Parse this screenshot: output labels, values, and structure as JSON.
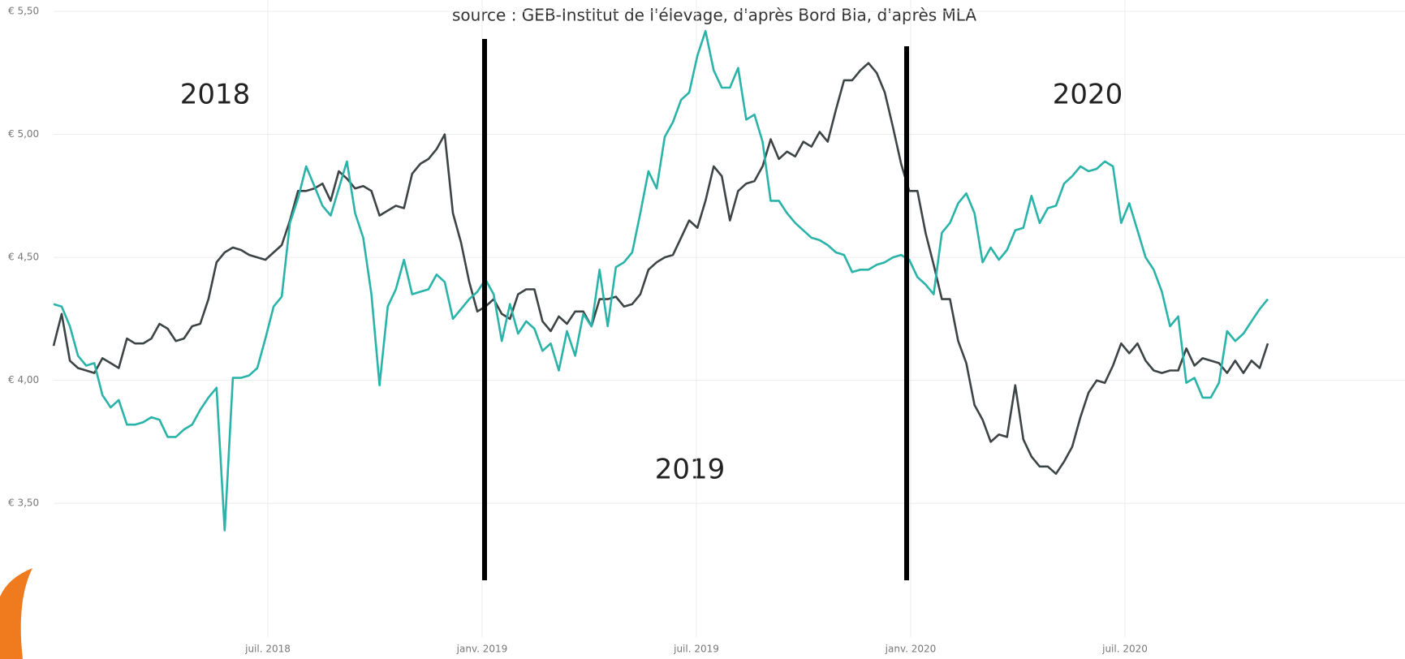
{
  "chart_data": {
    "type": "line",
    "subtitle": "source : GEB-Institut de l'élevage, d'après Bord Bia, d'après MLA",
    "annotations": [
      "2018",
      "2019",
      "2020"
    ],
    "xlim": [
      "2018-01",
      "2020-11"
    ],
    "xticks": [
      {
        "value": "2018-07",
        "label": "juil. 2018"
      },
      {
        "value": "2019-01",
        "label": "janv. 2019"
      },
      {
        "value": "2019-07",
        "label": "juil. 2019"
      },
      {
        "value": "2020-01",
        "label": "janv. 2020"
      },
      {
        "value": "2020-07",
        "label": "juil. 2020"
      }
    ],
    "ylim": [
      3.25,
      5.5
    ],
    "yticks": [
      {
        "value": 3.5,
        "label": "€ 3,50"
      },
      {
        "value": 4,
        "label": "€ 4,00"
      },
      {
        "value": 4.5,
        "label": "€ 4,50"
      },
      {
        "value": 5,
        "label": "€ 5,00"
      },
      {
        "value": 5.5,
        "label": "€ 5,50"
      }
    ],
    "grid": true,
    "series": [
      {
        "color": "#3d4446",
        "values": [
          4.14,
          4.27,
          4.08,
          4.05,
          4.04,
          4.03,
          4.09,
          4.07,
          4.05,
          4.17,
          4.15,
          4.15,
          4.17,
          4.23,
          4.21,
          4.16,
          4.17,
          4.22,
          4.23,
          4.33,
          4.48,
          4.52,
          4.54,
          4.53,
          4.51,
          4.5,
          4.49,
          4.52,
          4.55,
          4.65,
          4.77,
          4.77,
          4.78,
          4.8,
          4.73,
          4.85,
          4.82,
          4.78,
          4.79,
          4.77,
          4.67,
          4.69,
          4.71,
          4.7,
          4.84,
          4.88,
          4.9,
          4.94,
          5.0,
          4.68,
          4.56,
          4.4,
          4.28,
          4.3,
          4.33,
          4.27,
          4.25,
          4.35,
          4.37,
          4.37,
          4.24,
          4.2,
          4.26,
          4.23,
          4.28,
          4.28,
          4.22,
          4.33,
          4.33,
          4.34,
          4.3,
          4.31,
          4.35,
          4.45,
          4.48,
          4.5,
          4.51,
          4.58,
          4.65,
          4.62,
          4.73,
          4.87,
          4.83,
          4.65,
          4.77,
          4.8,
          4.81,
          4.87,
          4.98,
          4.9,
          4.93,
          4.91,
          4.97,
          4.95,
          5.01,
          4.97,
          5.1,
          5.22,
          5.22,
          5.26,
          5.29,
          5.25,
          5.17,
          5.03,
          4.88,
          4.77,
          4.77,
          4.6,
          4.47,
          4.33,
          4.33,
          4.16,
          4.07,
          3.9,
          3.84,
          3.75,
          3.78,
          3.77,
          3.98,
          3.76,
          3.69,
          3.65,
          3.65,
          3.62,
          3.67,
          3.73,
          3.85,
          3.95,
          4.0,
          3.99,
          4.06,
          4.15,
          4.11,
          4.15,
          4.08,
          4.04,
          4.03,
          4.04,
          4.04,
          4.13,
          4.06,
          4.09,
          4.08,
          4.07,
          4.03,
          4.08,
          4.03,
          4.08,
          4.05,
          4.15
        ]
      },
      {
        "color": "#2ab3a8",
        "values": [
          4.31,
          4.3,
          4.22,
          4.1,
          4.06,
          4.07,
          3.94,
          3.89,
          3.92,
          3.82,
          3.82,
          3.83,
          3.85,
          3.84,
          3.77,
          3.77,
          3.8,
          3.82,
          3.88,
          3.93,
          3.97,
          3.39,
          4.01,
          4.01,
          4.02,
          4.05,
          4.17,
          4.3,
          4.34,
          4.64,
          4.74,
          4.87,
          4.79,
          4.71,
          4.67,
          4.78,
          4.89,
          4.68,
          4.58,
          4.35,
          3.98,
          4.3,
          4.37,
          4.49,
          4.35,
          4.36,
          4.37,
          4.43,
          4.4,
          4.25,
          4.29,
          4.33,
          4.36,
          4.41,
          4.35,
          4.16,
          4.31,
          4.19,
          4.24,
          4.21,
          4.12,
          4.15,
          4.04,
          4.2,
          4.1,
          4.27,
          4.22,
          4.45,
          4.22,
          4.46,
          4.48,
          4.52,
          4.68,
          4.85,
          4.78,
          4.99,
          5.05,
          5.14,
          5.17,
          5.32,
          5.42,
          5.26,
          5.19,
          5.19,
          5.27,
          5.06,
          5.08,
          4.97,
          4.73,
          4.73,
          4.68,
          4.64,
          4.61,
          4.58,
          4.57,
          4.55,
          4.52,
          4.51,
          4.44,
          4.45,
          4.45,
          4.47,
          4.48,
          4.5,
          4.51,
          4.49,
          4.42,
          4.39,
          4.35,
          4.6,
          4.64,
          4.72,
          4.76,
          4.68,
          4.48,
          4.54,
          4.49,
          4.53,
          4.61,
          4.62,
          4.75,
          4.64,
          4.7,
          4.71,
          4.8,
          4.83,
          4.87,
          4.85,
          4.86,
          4.89,
          4.87,
          4.64,
          4.72,
          4.61,
          4.5,
          4.45,
          4.36,
          4.22,
          4.26,
          3.99,
          4.01,
          3.93,
          3.93,
          3.99,
          4.2,
          4.16,
          4.19,
          4.24,
          4.29,
          4.33
        ]
      }
    ]
  }
}
